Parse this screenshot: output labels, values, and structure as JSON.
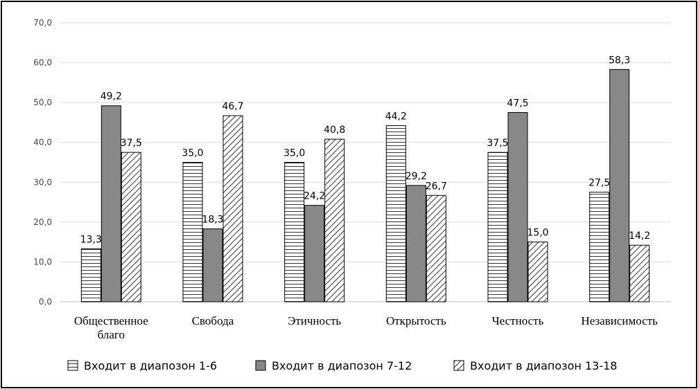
{
  "chart_data": {
    "type": "bar",
    "title": "",
    "xlabel": "",
    "ylabel": "",
    "ylim": [
      0,
      70
    ],
    "yticks": [
      0,
      10,
      20,
      30,
      40,
      50,
      60,
      70
    ],
    "ytick_labels": [
      "0,0",
      "10,0",
      "20,0",
      "30,0",
      "40,0",
      "50,0",
      "60,0",
      "70,0"
    ],
    "grid": true,
    "legend_position": "bottom",
    "categories": [
      [
        "Общественное",
        "благо"
      ],
      [
        "Свобода"
      ],
      [
        "Этичность"
      ],
      [
        "Открытость"
      ],
      [
        "Честность"
      ],
      [
        "Независимость"
      ]
    ],
    "series": [
      {
        "name": "Входит в диапозон 1-6",
        "pattern": "horizontal-stripes",
        "values": [
          13.3,
          35.0,
          35.0,
          44.2,
          37.5,
          27.5
        ],
        "labels": [
          "13,3",
          "35,0",
          "35,0",
          "44,2",
          "37,5",
          "27,5"
        ]
      },
      {
        "name": "Входит в диапозон 7-12",
        "pattern": "solid-gray",
        "values": [
          49.2,
          18.3,
          24.2,
          29.2,
          47.5,
          58.3
        ],
        "labels": [
          "49,2",
          "18,3",
          "24,2",
          "29,2",
          "47,5",
          "58,3"
        ]
      },
      {
        "name": "Входит в диапозон 13-18",
        "pattern": "diagonal-stripes",
        "values": [
          37.5,
          46.7,
          40.8,
          26.7,
          15.0,
          14.2
        ],
        "labels": [
          "37,5",
          "46,7",
          "40,8",
          "26,7",
          "15,0",
          "14,2"
        ]
      }
    ]
  },
  "colors": {
    "bar_outline": "#000000",
    "solid_fill": "#888888",
    "stripe": "#333333",
    "grid": "#d9d9d9",
    "axis": "#bfbfbf"
  }
}
